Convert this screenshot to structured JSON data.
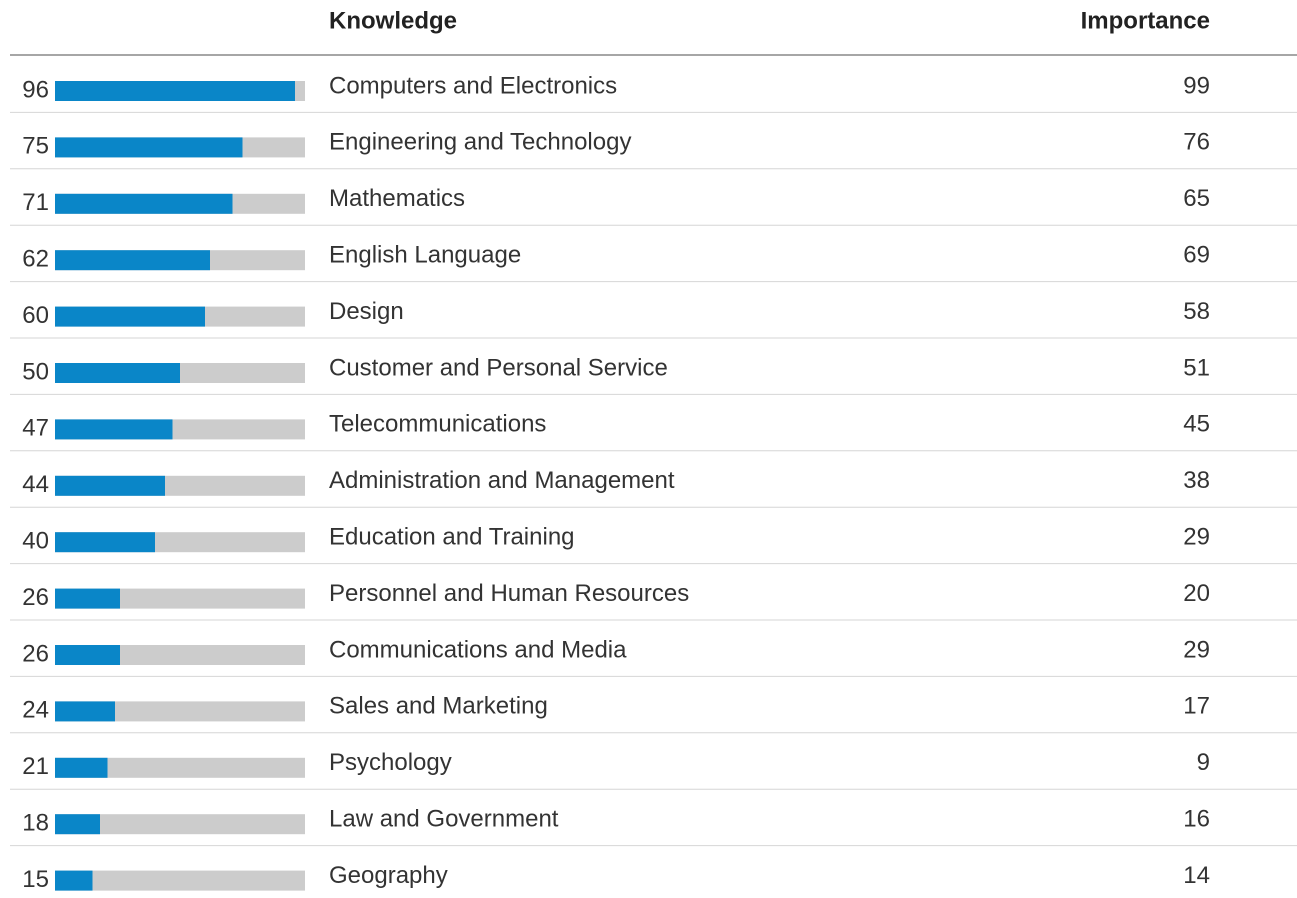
{
  "table": {
    "columns": [
      "Knowledge",
      "Importance"
    ],
    "xlim": [
      0,
      100
    ],
    "bar_color": "#0a86c8",
    "track_color": "#cccccc",
    "rows": [
      {
        "score": 96,
        "knowledge": "Computers and Electronics",
        "importance": 99
      },
      {
        "score": 75,
        "knowledge": "Engineering and Technology",
        "importance": 76
      },
      {
        "score": 71,
        "knowledge": "Mathematics",
        "importance": 65
      },
      {
        "score": 62,
        "knowledge": "English Language",
        "importance": 69
      },
      {
        "score": 60,
        "knowledge": "Design",
        "importance": 58
      },
      {
        "score": 50,
        "knowledge": "Customer and Personal Service",
        "importance": 51
      },
      {
        "score": 47,
        "knowledge": "Telecommunications",
        "importance": 45
      },
      {
        "score": 44,
        "knowledge": "Administration and Management",
        "importance": 38
      },
      {
        "score": 40,
        "knowledge": "Education and Training",
        "importance": 29
      },
      {
        "score": 26,
        "knowledge": "Personnel and Human Resources",
        "importance": 20
      },
      {
        "score": 26,
        "knowledge": "Communications and Media",
        "importance": 29
      },
      {
        "score": 24,
        "knowledge": "Sales and Marketing",
        "importance": 17
      },
      {
        "score": 21,
        "knowledge": "Psychology",
        "importance": 9
      },
      {
        "score": 18,
        "knowledge": "Law and Government",
        "importance": 16
      },
      {
        "score": 15,
        "knowledge": "Geography",
        "importance": 14
      }
    ]
  }
}
